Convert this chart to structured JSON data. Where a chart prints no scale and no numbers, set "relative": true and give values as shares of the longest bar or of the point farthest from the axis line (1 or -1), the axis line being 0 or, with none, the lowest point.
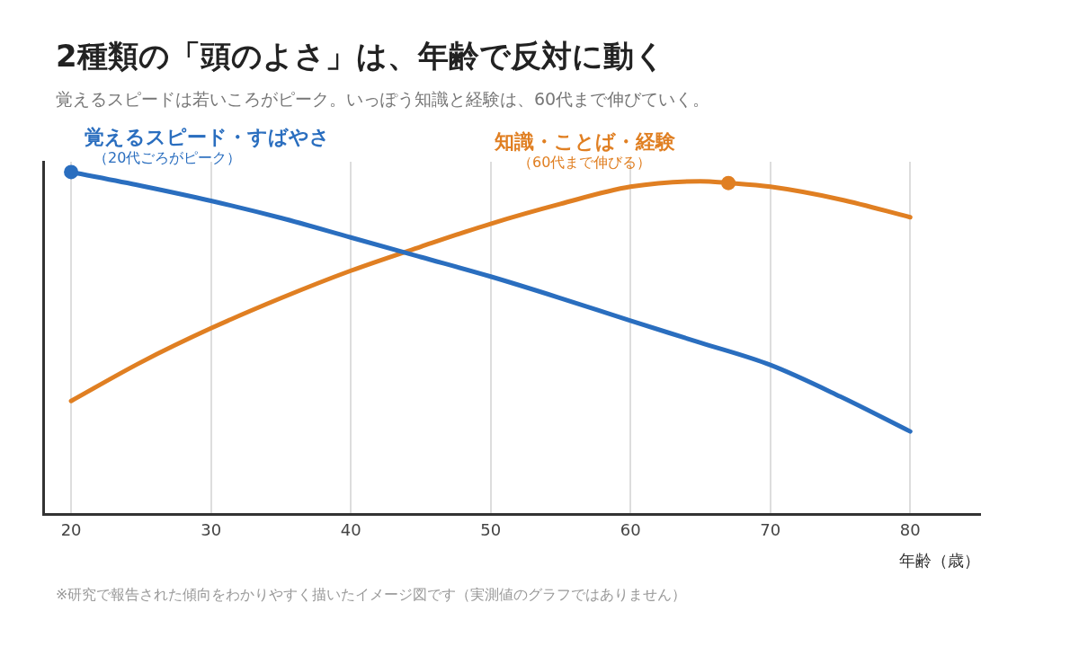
{
  "chart_data": {
    "type": "line",
    "title": "2種類の「頭のよさ」は、年齢で反対に動く",
    "subtitle": "覚えるスピードは若いころがピーク。いっぽう知識と経験は、60代まで伸びていく。",
    "xlabel": "年齢（歳）",
    "relative": true,
    "xlim": [
      18,
      85
    ],
    "xticks": [
      20,
      30,
      40,
      50,
      60,
      70,
      80
    ],
    "grid": "x",
    "legend": false,
    "marker": "none",
    "line_style": "solid",
    "series": [
      {
        "name": "覚えるスピード・すばやさ",
        "color": "#2a6ebf",
        "x": [
          20,
          25,
          30,
          35,
          40,
          45,
          50,
          55,
          60,
          65,
          70,
          75,
          80
        ],
        "values": [
          1,
          0.96,
          0.916,
          0.866,
          0.809,
          0.752,
          0.695,
          0.632,
          0.566,
          0.502,
          0.437,
          0.345,
          0.243
        ]
      },
      {
        "name": "知識・ことば・経験",
        "color": "#e07f22",
        "x": [
          20,
          25,
          30,
          35,
          40,
          45,
          50,
          55,
          60,
          65,
          67,
          70,
          75,
          80
        ],
        "values": [
          0.332,
          0.445,
          0.544,
          0.632,
          0.712,
          0.782,
          0.849,
          0.907,
          0.957,
          0.973,
          0.968,
          0.957,
          0.92,
          0.868
        ]
      },
      {
        "type": "scatter",
        "marker": "circle",
        "color": "#2a6ebf",
        "x": [
          20
        ],
        "values": [
          1
        ]
      },
      {
        "type": "scatter",
        "marker": "circle",
        "color": "#e07f22",
        "x": [
          67
        ],
        "values": [
          0.968
        ]
      }
    ],
    "annotations": [
      "（20代ごろがピーク）",
      "（60代まで伸びる）",
      "※研究で報告された傾向をわかりやすく描いたイメージ図です（実測値のグラフではありません）"
    ]
  }
}
